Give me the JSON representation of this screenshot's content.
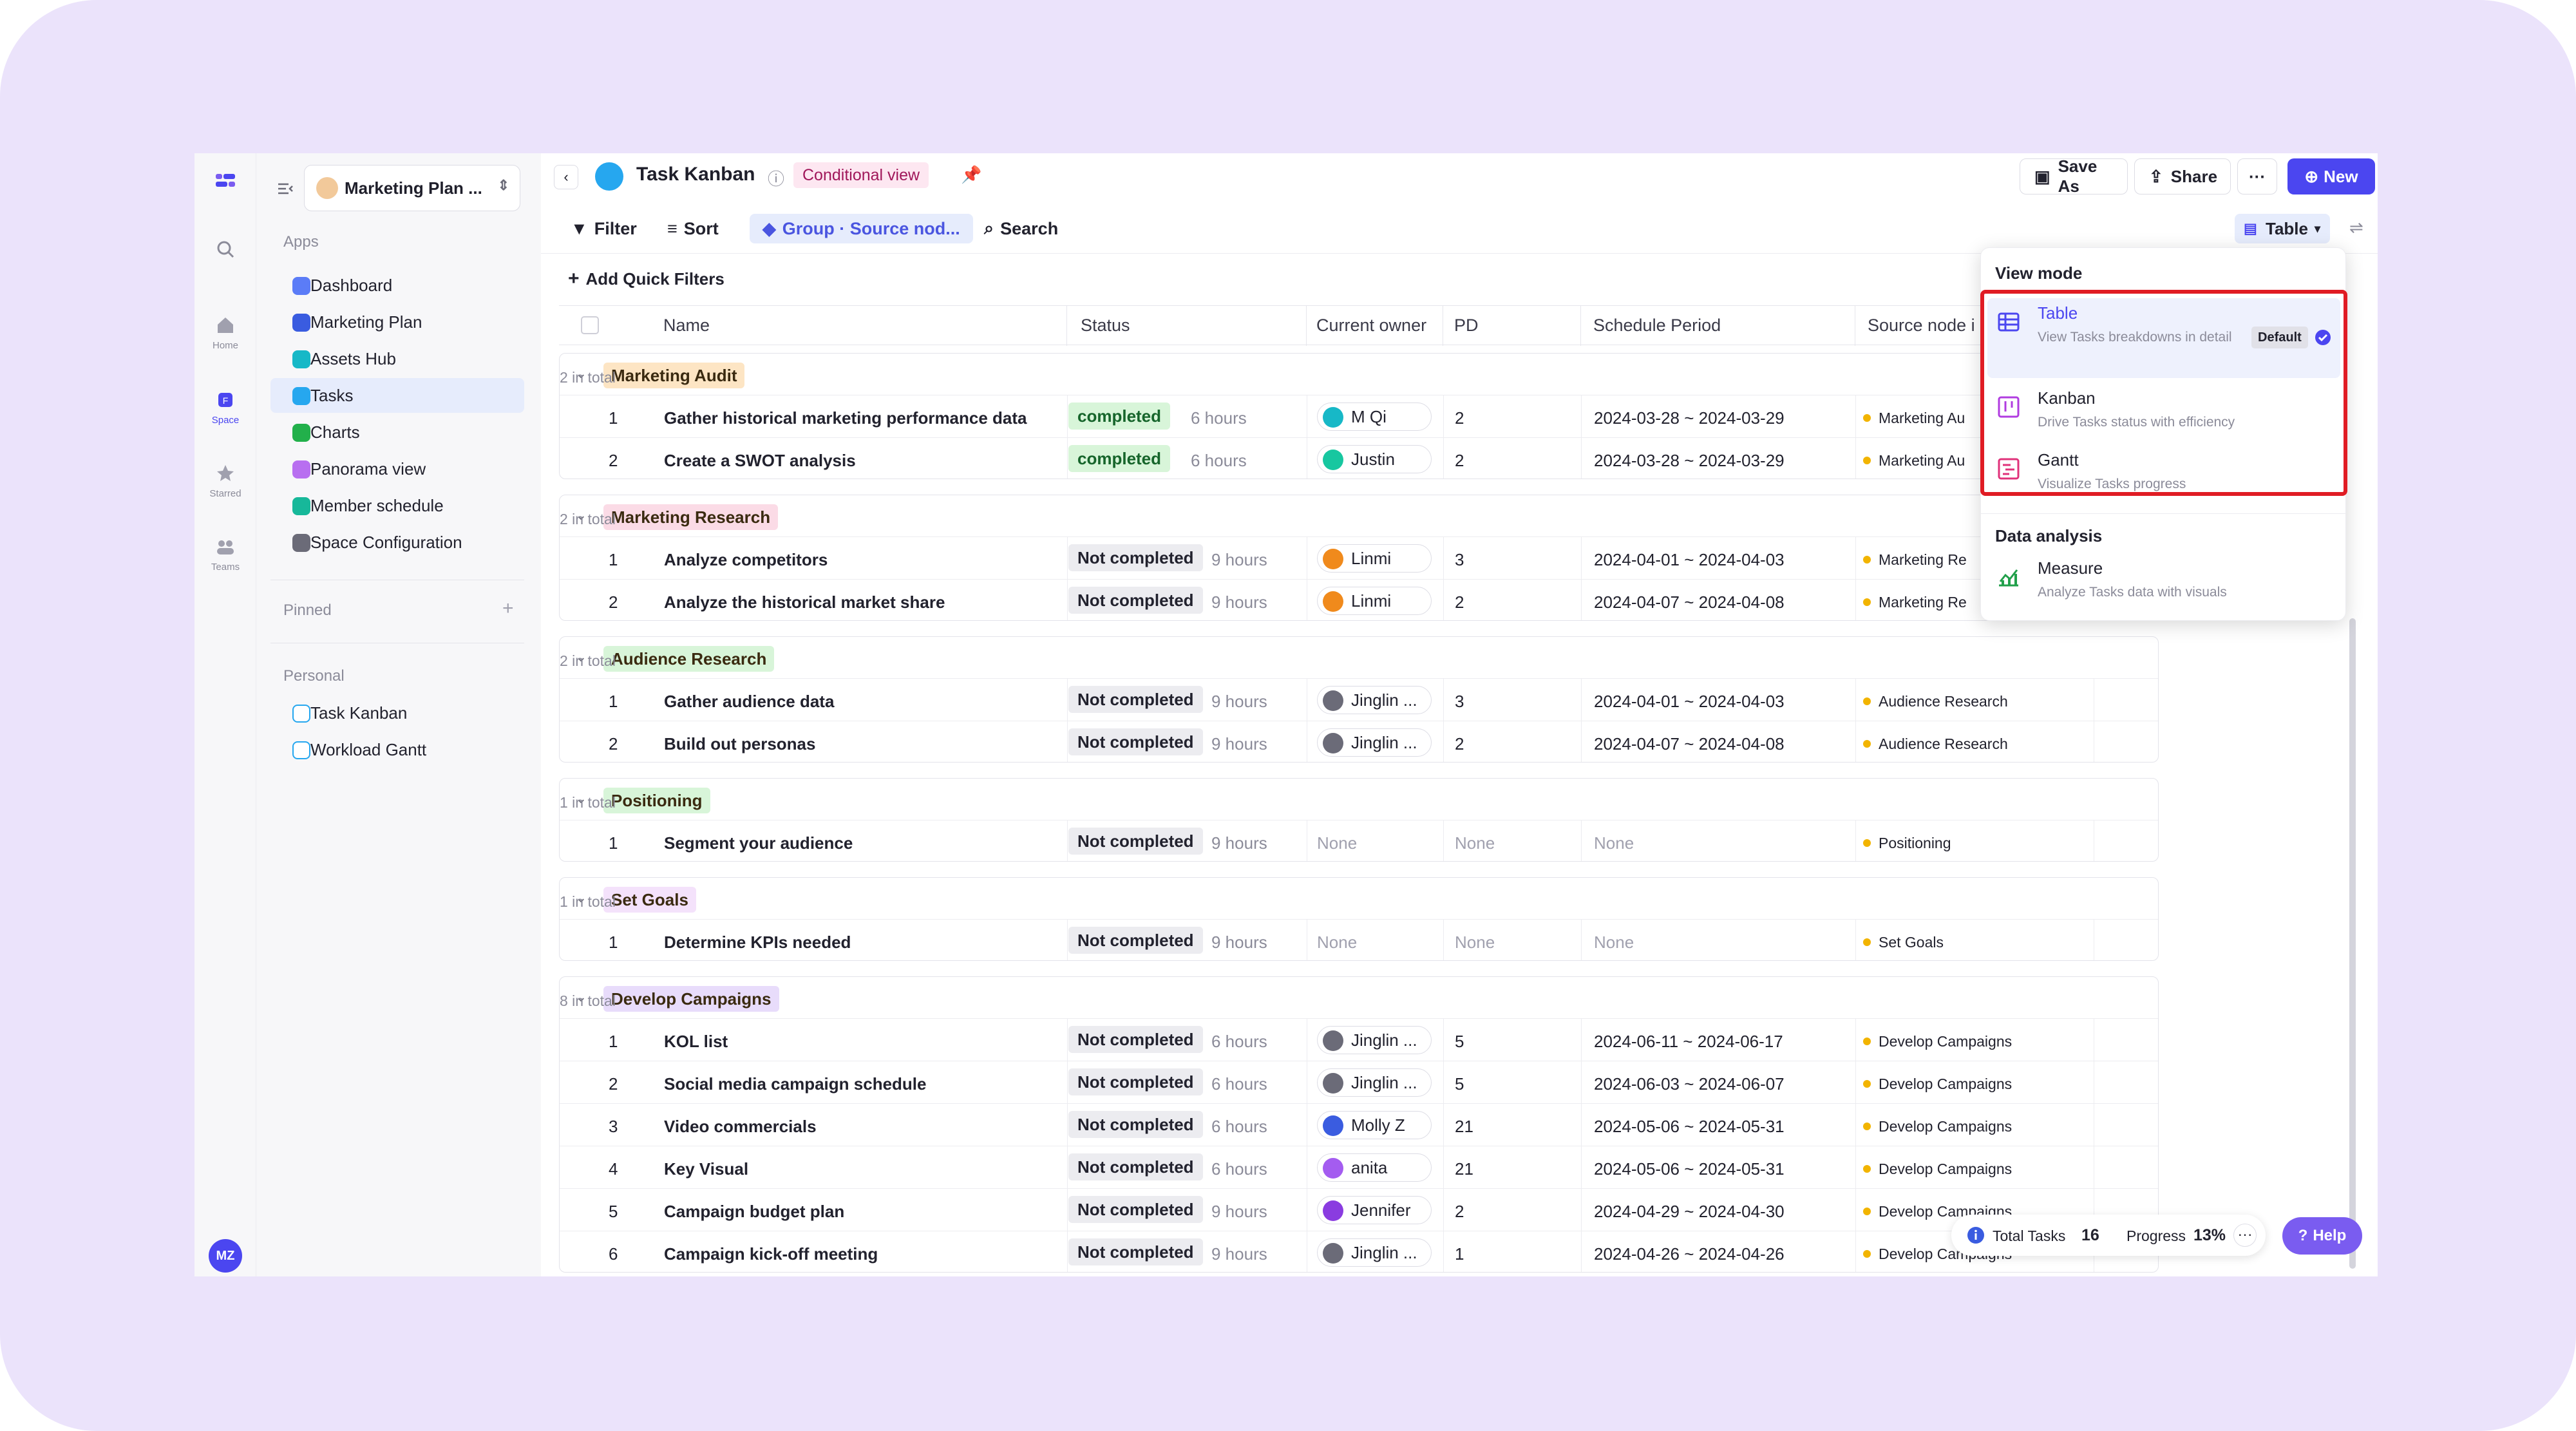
{
  "sidebar_rail": {
    "items": [
      {
        "label": "Home",
        "icon": "home-icon"
      },
      {
        "label": "Space",
        "icon": "space-icon"
      },
      {
        "label": "Starred",
        "icon": "star-icon"
      },
      {
        "label": "Teams",
        "icon": "teams-icon"
      }
    ],
    "avatar": "MZ"
  },
  "sidebar": {
    "workspace": "Marketing Plan ...",
    "apps_label": "Apps",
    "apps": [
      {
        "label": "Dashboard",
        "color": "#5b7cf7"
      },
      {
        "label": "Marketing Plan",
        "color": "#3a5ce0"
      },
      {
        "label": "Assets Hub",
        "color": "#17b8c7"
      },
      {
        "label": "Tasks",
        "color": "#26a7ef"
      },
      {
        "label": "Charts",
        "color": "#22b04b"
      },
      {
        "label": "Panorama view",
        "color": "#b86ff0"
      },
      {
        "label": "Member schedule",
        "color": "#17b89a"
      },
      {
        "label": "Space Configuration",
        "color": "#6b6b78"
      }
    ],
    "pinned_label": "Pinned",
    "personal_label": "Personal",
    "personal": [
      "Task Kanban",
      "Workload Gantt"
    ]
  },
  "header": {
    "title": "Task Kanban",
    "conditional_view": "Conditional view",
    "save_as": "Save As",
    "share": "Share",
    "new": "New"
  },
  "toolbar": {
    "filter": "Filter",
    "sort": "Sort",
    "group": "Group · Source nod...",
    "search": "Search",
    "table": "Table",
    "add_quick_filters": "Add Quick Filters"
  },
  "columns": [
    "Name",
    "Status",
    "Current owner",
    "PD",
    "Schedule Period",
    "Source node i"
  ],
  "groups": [
    {
      "name": "Marketing Audit",
      "count": "2 in total",
      "color": "#fde5c4",
      "rows": [
        {
          "n": "1",
          "name": "Gather historical marketing performance data",
          "status": "completed",
          "hours": "6 hours",
          "owner": "M Qi",
          "av": "#17b8c7",
          "pd": "2",
          "period": "2024-03-28 ~ 2024-03-29",
          "src": "Marketing Au"
        },
        {
          "n": "2",
          "name": "Create a SWOT analysis",
          "status": "completed",
          "hours": "6 hours",
          "owner": "Justin",
          "av": "#17c7a0",
          "pd": "2",
          "period": "2024-03-28 ~ 2024-03-29",
          "src": "Marketing Au"
        }
      ]
    },
    {
      "name": "Marketing Research",
      "count": "2 in total",
      "color": "#fbdbe6",
      "rows": [
        {
          "n": "1",
          "name": "Analyze competitors",
          "status": "Not completed",
          "hours": "9 hours",
          "owner": "Linmi",
          "av": "#f08a1c",
          "pd": "3",
          "period": "2024-04-01 ~ 2024-04-03",
          "src": "Marketing Re"
        },
        {
          "n": "2",
          "name": "Analyze the historical market share",
          "status": "Not completed",
          "hours": "9 hours",
          "owner": "Linmi",
          "av": "#f08a1c",
          "pd": "2",
          "period": "2024-04-07 ~ 2024-04-08",
          "src": "Marketing Re"
        }
      ]
    },
    {
      "name": "Audience Research",
      "count": "2 in total",
      "color": "#d8f5d9",
      "rows": [
        {
          "n": "1",
          "name": "Gather audience data",
          "status": "Not completed",
          "hours": "9 hours",
          "owner": "Jinglin ...",
          "av": "#6b6b78",
          "pd": "3",
          "period": "2024-04-01 ~ 2024-04-03",
          "src": "Audience Research"
        },
        {
          "n": "2",
          "name": "Build out personas",
          "status": "Not completed",
          "hours": "9 hours",
          "owner": "Jinglin ...",
          "av": "#6b6b78",
          "pd": "2",
          "period": "2024-04-07 ~ 2024-04-08",
          "src": "Audience Research"
        }
      ]
    },
    {
      "name": "Positioning",
      "count": "1 in total",
      "color": "#d8f5d9",
      "rows": [
        {
          "n": "1",
          "name": "Segment your audience",
          "status": "Not completed",
          "hours": "9 hours",
          "owner": "",
          "av": "",
          "pd": "None",
          "period": "None",
          "src": "Positioning",
          "owner_none": "None"
        }
      ]
    },
    {
      "name": "Set Goals",
      "count": "1 in total",
      "color": "#f4e2fb",
      "rows": [
        {
          "n": "1",
          "name": "Determine KPIs needed",
          "status": "Not completed",
          "hours": "9 hours",
          "owner": "",
          "av": "",
          "pd": "None",
          "period": "None",
          "src": "Set Goals",
          "owner_none": "None"
        }
      ]
    },
    {
      "name": "Develop Campaigns",
      "count": "8 in total",
      "color": "#e8dcfb",
      "rows": [
        {
          "n": "1",
          "name": "KOL list",
          "status": "Not completed",
          "hours": "6 hours",
          "owner": "Jinglin ...",
          "av": "#6b6b78",
          "pd": "5",
          "period": "2024-06-11 ~ 2024-06-17",
          "src": "Develop Campaigns"
        },
        {
          "n": "2",
          "name": "Social media campaign schedule",
          "status": "Not completed",
          "hours": "6 hours",
          "owner": "Jinglin ...",
          "av": "#6b6b78",
          "pd": "5",
          "period": "2024-06-03 ~ 2024-06-07",
          "src": "Develop Campaigns"
        },
        {
          "n": "3",
          "name": "Video commercials",
          "status": "Not completed",
          "hours": "6 hours",
          "owner": "Molly Z",
          "av": "#3a5ce0",
          "pd": "21",
          "period": "2024-05-06 ~ 2024-05-31",
          "src": "Develop Campaigns"
        },
        {
          "n": "4",
          "name": "Key Visual",
          "status": "Not completed",
          "hours": "6 hours",
          "owner": "anita",
          "av": "#a45cf0",
          "pd": "21",
          "period": "2024-05-06 ~ 2024-05-31",
          "src": "Develop Campaigns"
        },
        {
          "n": "5",
          "name": "Campaign budget plan",
          "status": "Not completed",
          "hours": "9 hours",
          "owner": "Jennifer",
          "av": "#8a3ce0",
          "pd": "2",
          "period": "2024-04-29 ~ 2024-04-30",
          "src": "Develop Campaigns"
        },
        {
          "n": "6",
          "name": "Campaign kick-off meeting",
          "status": "Not completed",
          "hours": "9 hours",
          "owner": "Jinglin ...",
          "av": "#6b6b78",
          "pd": "1",
          "period": "2024-04-26 ~ 2024-04-26",
          "src": "Develop Campaigns"
        }
      ]
    }
  ],
  "view_menu": {
    "view_mode_label": "View mode",
    "options": [
      {
        "name": "Table",
        "desc": "View Tasks breakdowns in detail",
        "badge": "Default",
        "icon": "table-icon"
      },
      {
        "name": "Kanban",
        "desc": "Drive Tasks status with efficiency",
        "icon": "kanban-icon"
      },
      {
        "name": "Gantt",
        "desc": "Visualize Tasks progress",
        "icon": "gantt-icon"
      }
    ],
    "data_analysis_label": "Data analysis",
    "measure": {
      "name": "Measure",
      "desc": "Analyze Tasks data with visuals",
      "icon": "measure-icon"
    }
  },
  "footer": {
    "total_tasks_label": "Total Tasks",
    "total_tasks": "16",
    "progress_label": "Progress",
    "progress": "13%",
    "help": "Help"
  }
}
